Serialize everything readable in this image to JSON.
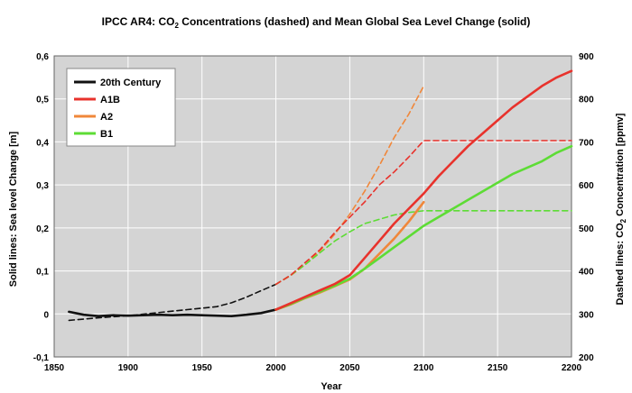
{
  "chart_data": {
    "type": "line",
    "title": {
      "prefix": "IPCC AR4:  CO",
      "sub": "2",
      "suffix": " Concentrations (dashed) and Mean Global Sea Level Change (solid)"
    },
    "xlabel": "Year",
    "ylabel_left": "Solid lines: Sea level Change [m]",
    "ylabel_right": {
      "prefix": "Dashed lines: CO",
      "sub": "2",
      "suffix": " Concentration [ppmv]"
    },
    "xlim": [
      1850,
      2200
    ],
    "ylim_left": [
      -0.1,
      0.6
    ],
    "ylim_right": [
      200,
      900
    ],
    "x_ticks": [
      "1850",
      "1900",
      "1950",
      "2000",
      "2050",
      "2100",
      "2150",
      "2200"
    ],
    "y_left_ticks": [
      "-0,1",
      "0",
      "0,1",
      "0,2",
      "0,3",
      "0,4",
      "0,5",
      "0,6"
    ],
    "y_right_ticks": [
      "200",
      "300",
      "400",
      "500",
      "600",
      "700",
      "800",
      "900"
    ],
    "grid": true,
    "legend_position": "top-left",
    "colors": {
      "20th Century": "#111111",
      "A1B": "#e8322c",
      "A2": "#f0873a",
      "B1": "#5ddc35",
      "plot_background": "#d4d4d4",
      "grid": "#ffffff"
    },
    "series": [
      {
        "name": "20th Century",
        "style": "solid",
        "axis": "left",
        "x": [
          1860,
          1870,
          1880,
          1890,
          1900,
          1910,
          1920,
          1930,
          1940,
          1950,
          1960,
          1970,
          1980,
          1990,
          2000
        ],
        "values": [
          0.005,
          -0.002,
          -0.005,
          -0.003,
          -0.004,
          -0.003,
          -0.002,
          -0.003,
          -0.002,
          -0.003,
          -0.004,
          -0.005,
          -0.002,
          0.002,
          0.01
        ]
      },
      {
        "name": "20th Century",
        "style": "dashed",
        "axis": "right",
        "x": [
          1860,
          1880,
          1900,
          1920,
          1940,
          1960,
          1970,
          1980,
          1990,
          2000
        ],
        "values": [
          285,
          291,
          296,
          303,
          310,
          317,
          326,
          339,
          354,
          369
        ]
      },
      {
        "name": "A1B",
        "style": "solid",
        "axis": "left",
        "x": [
          2000,
          2010,
          2020,
          2030,
          2040,
          2050,
          2060,
          2070,
          2080,
          2090,
          2100,
          2110,
          2120,
          2130,
          2140,
          2150,
          2160,
          2170,
          2180,
          2190,
          2200
        ],
        "values": [
          0.01,
          0.025,
          0.04,
          0.055,
          0.07,
          0.09,
          0.13,
          0.17,
          0.21,
          0.245,
          0.28,
          0.32,
          0.355,
          0.39,
          0.42,
          0.45,
          0.48,
          0.505,
          0.53,
          0.55,
          0.565
        ]
      },
      {
        "name": "A1B",
        "style": "dashed",
        "axis": "right",
        "x": [
          2000,
          2010,
          2020,
          2030,
          2040,
          2050,
          2060,
          2070,
          2080,
          2090,
          2100,
          2150,
          2200
        ],
        "values": [
          369,
          390,
          420,
          450,
          490,
          525,
          560,
          600,
          630,
          665,
          703,
          703,
          703
        ]
      },
      {
        "name": "A2",
        "style": "solid",
        "axis": "left",
        "x": [
          2000,
          2010,
          2020,
          2030,
          2040,
          2050,
          2060,
          2070,
          2080,
          2090,
          2100
        ],
        "values": [
          0.01,
          0.022,
          0.037,
          0.05,
          0.065,
          0.08,
          0.105,
          0.14,
          0.175,
          0.215,
          0.26
        ]
      },
      {
        "name": "A2",
        "style": "dashed",
        "axis": "right",
        "x": [
          2000,
          2010,
          2020,
          2030,
          2040,
          2050,
          2060,
          2070,
          2080,
          2090,
          2100
        ],
        "values": [
          369,
          389,
          415,
          447,
          486,
          532,
          585,
          645,
          710,
          765,
          830
        ]
      },
      {
        "name": "B1",
        "style": "solid",
        "axis": "left",
        "x": [
          2000,
          2010,
          2020,
          2030,
          2040,
          2050,
          2060,
          2070,
          2080,
          2090,
          2100,
          2110,
          2120,
          2130,
          2140,
          2150,
          2160,
          2170,
          2180,
          2190,
          2200
        ],
        "values": [
          0.01,
          0.023,
          0.038,
          0.052,
          0.066,
          0.082,
          0.105,
          0.13,
          0.155,
          0.18,
          0.205,
          0.225,
          0.245,
          0.265,
          0.285,
          0.305,
          0.325,
          0.34,
          0.355,
          0.375,
          0.39
        ]
      },
      {
        "name": "B1",
        "style": "dashed",
        "axis": "right",
        "x": [
          2000,
          2010,
          2020,
          2030,
          2040,
          2050,
          2060,
          2070,
          2080,
          2090,
          2100,
          2150,
          2200
        ],
        "values": [
          369,
          390,
          415,
          443,
          470,
          491,
          510,
          520,
          530,
          536,
          540,
          540,
          540
        ]
      }
    ],
    "legend": [
      {
        "name": "20th Century",
        "color": "#111111"
      },
      {
        "name": "A1B",
        "color": "#e8322c"
      },
      {
        "name": "A2",
        "color": "#f0873a"
      },
      {
        "name": "B1",
        "color": "#5ddc35"
      }
    ]
  }
}
